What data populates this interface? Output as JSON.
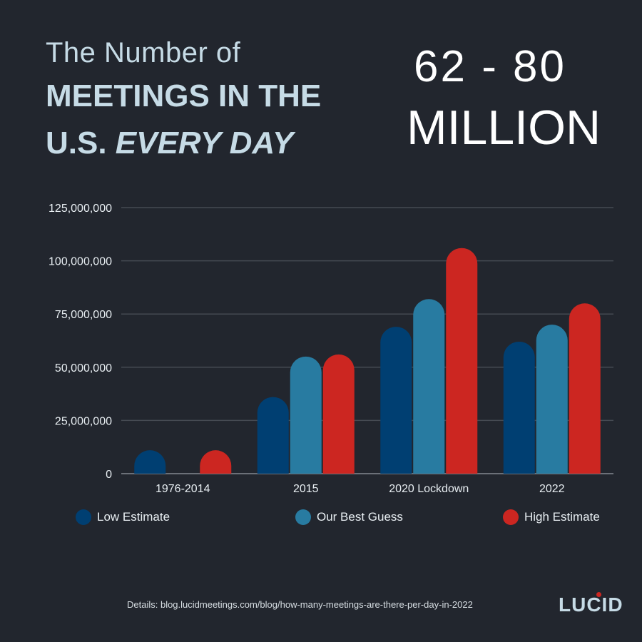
{
  "title": {
    "line1": "The Number of",
    "line2": "MEETINGS IN THE",
    "line3_prefix": "U.S. ",
    "line3_italic": "EVERY DAY"
  },
  "headline": {
    "range": "62 - 80",
    "unit": "MILLION"
  },
  "footer": {
    "details": "Details: blog.lucidmeetings.com/blog/how-many-meetings-are-there-per-day-in-2022",
    "logo": "LUCID"
  },
  "chart_data": {
    "type": "bar",
    "categories": [
      "1976-2014",
      "2015",
      "2020 Lockdown",
      "2022"
    ],
    "series": [
      {
        "name": "Low Estimate",
        "color": "#003f72",
        "values": [
          11000000,
          36000000,
          69000000,
          62000000
        ]
      },
      {
        "name": "Our Best Guess",
        "color": "#287ba1",
        "values": [
          0,
          55000000,
          82000000,
          70000000
        ]
      },
      {
        "name": "High Estimate",
        "color": "#cc2621",
        "values": [
          11000000,
          56000000,
          106000000,
          80000000
        ]
      }
    ],
    "yticks": [
      "0",
      "25,000,000",
      "50,000,000",
      "75,000,000",
      "100,000,000",
      "125,000,000"
    ],
    "ylim": [
      0,
      125000000
    ],
    "grid": true,
    "legend": "bottom"
  }
}
